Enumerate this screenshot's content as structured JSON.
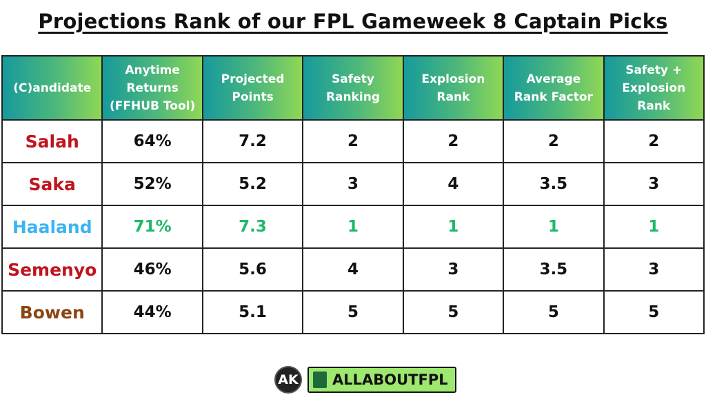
{
  "title": "Projections Rank of our FPL Gameweek 8 Captain Picks",
  "table": {
    "header": [
      [
        "(C)andidate"
      ],
      [
        "Anytime",
        "Returns",
        "(FFHUB Tool)"
      ],
      [
        "Projected",
        "Points"
      ],
      [
        "Safety",
        "Ranking"
      ],
      [
        "Explosion",
        "Rank"
      ],
      [
        "Average",
        "Rank Factor"
      ],
      [
        "Safety +",
        "Explosion",
        "Rank"
      ]
    ],
    "rows": [
      [
        "Salah",
        "64%",
        "7.2",
        "2",
        "2",
        "2",
        "2"
      ],
      [
        "Saka",
        "52%",
        "5.2",
        "3",
        "4",
        "3.5",
        "3"
      ],
      [
        "Haaland",
        "71%",
        "7.3",
        "1",
        "1",
        "1",
        "1"
      ],
      [
        "Semenyo",
        "46%",
        "5.6",
        "4",
        "3",
        "3.5",
        "3"
      ],
      [
        "Bowen",
        "44%",
        "5.1",
        "5",
        "5",
        "5",
        "5"
      ]
    ]
  },
  "footer": {
    "badge": "AK",
    "brand": "ALLABOUTFPL"
  }
}
